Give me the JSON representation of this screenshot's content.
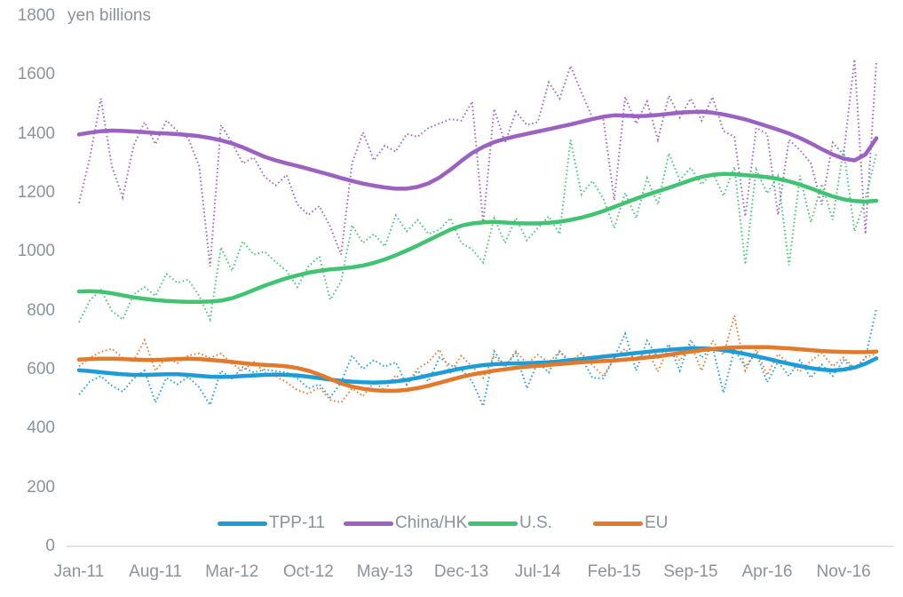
{
  "chart_data": {
    "type": "line",
    "unit_label": "yen billions",
    "y_axis": {
      "min": 0,
      "max": 1800,
      "step": 200,
      "tick_labels": [
        "0",
        "200",
        "400",
        "600",
        "800",
        "1000",
        "1200",
        "1400",
        "1600",
        "1800"
      ]
    },
    "x_axis": {
      "n_points": 74,
      "tick_indices": [
        0,
        7,
        14,
        21,
        28,
        35,
        42,
        49,
        56,
        63,
        70
      ],
      "tick_labels": [
        "Jan-11",
        "Aug-11",
        "Mar-12",
        "Oct-12",
        "May-13",
        "Dec-13",
        "Jul-14",
        "Feb-15",
        "Sep-15",
        "Apr-16",
        "Nov-16"
      ]
    },
    "grid": "off",
    "legend_position": "bottom",
    "line_styles": {
      "trend": "solid",
      "monthly": "dotted"
    },
    "series": [
      {
        "name": "TPP-11",
        "color": "#1d9cd8",
        "trend": [
          598,
          595,
          591,
          587,
          584,
          582,
          582,
          583,
          584,
          584,
          582,
          579,
          576,
          575,
          576,
          578,
          580,
          582,
          583,
          582,
          580,
          576,
          571,
          566,
          562,
          559,
          557,
          556,
          557,
          560,
          565,
          572,
          580,
          588,
          596,
          604,
          610,
          615,
          618,
          620,
          621,
          622,
          623,
          625,
          628,
          632,
          636,
          640,
          644,
          648,
          652,
          656,
          660,
          664,
          667,
          670,
          672,
          672,
          670,
          666,
          660,
          653,
          645,
          637,
          628,
          620,
          612,
          605,
          600,
          597,
          600,
          607,
          620,
          638
        ],
        "monthly": [
          515,
          560,
          578,
          545,
          525,
          570,
          597,
          488,
          572,
          550,
          575,
          540,
          480,
          596,
          570,
          608,
          590,
          600,
          595,
          590,
          570,
          536,
          550,
          505,
          557,
          647,
          602,
          632,
          610,
          625,
          548,
          596,
          560,
          641,
          615,
          600,
          560,
          476,
          662,
          610,
          656,
          536,
          626,
          590,
          662,
          620,
          641,
          572,
          570,
          640,
          722,
          596,
          698,
          640,
          686,
          596,
          701,
          640,
          677,
          521,
          668,
          610,
          656,
          557,
          626,
          578,
          632,
          572,
          617,
          578,
          632,
          600,
          640,
          807
        ]
      },
      {
        "name": "China/HK",
        "color": "#9b62c1",
        "trend": [
          1398,
          1404,
          1409,
          1411,
          1410,
          1408,
          1406,
          1403,
          1401,
          1399,
          1396,
          1392,
          1386,
          1378,
          1368,
          1354,
          1338,
          1322,
          1310,
          1300,
          1291,
          1281,
          1271,
          1261,
          1250,
          1240,
          1231,
          1224,
          1218,
          1214,
          1214,
          1220,
          1232,
          1252,
          1278,
          1308,
          1335,
          1356,
          1372,
          1383,
          1392,
          1400,
          1408,
          1416,
          1424,
          1432,
          1441,
          1450,
          1458,
          1463,
          1462,
          1460,
          1461,
          1464,
          1468,
          1472,
          1474,
          1475,
          1472,
          1466,
          1458,
          1449,
          1438,
          1426,
          1414,
          1401,
          1386,
          1368,
          1348,
          1330,
          1316,
          1310,
          1330,
          1385
        ],
        "monthly": [
          1165,
          1320,
          1520,
          1290,
          1185,
          1360,
          1440,
          1365,
          1445,
          1410,
          1385,
          1290,
          950,
          1430,
          1370,
          1300,
          1320,
          1255,
          1225,
          1260,
          1160,
          1125,
          1155,
          1085,
          990,
          1300,
          1405,
          1310,
          1360,
          1340,
          1400,
          1390,
          1420,
          1435,
          1450,
          1445,
          1510,
          1095,
          1485,
          1370,
          1475,
          1430,
          1440,
          1575,
          1520,
          1630,
          1540,
          1455,
          1450,
          1175,
          1525,
          1435,
          1510,
          1380,
          1530,
          1455,
          1520,
          1445,
          1525,
          1410,
          1390,
          1120,
          1420,
          1400,
          1125,
          1380,
          1345,
          1300,
          1160,
          1370,
          1330,
          1653,
          1060,
          1645
        ]
      },
      {
        "name": "U.S.",
        "color": "#41c373",
        "trend": [
          865,
          866,
          864,
          859,
          852,
          845,
          840,
          836,
          833,
          831,
          830,
          830,
          831,
          834,
          842,
          855,
          870,
          885,
          898,
          910,
          920,
          929,
          935,
          940,
          943,
          947,
          953,
          962,
          974,
          988,
          1004,
          1021,
          1039,
          1057,
          1075,
          1088,
          1096,
          1100,
          1101,
          1099,
          1097,
          1096,
          1096,
          1098,
          1102,
          1108,
          1116,
          1126,
          1138,
          1152,
          1166,
          1180,
          1193,
          1205,
          1217,
          1230,
          1243,
          1254,
          1261,
          1264,
          1263,
          1260,
          1257,
          1253,
          1247,
          1239,
          1228,
          1215,
          1201,
          1188,
          1178,
          1172,
          1170,
          1173
        ],
        "monthly": [
          760,
          835,
          870,
          800,
          770,
          855,
          880,
          850,
          925,
          895,
          905,
          850,
          770,
          1015,
          935,
          1035,
          990,
          1000,
          965,
          935,
          880,
          950,
          984,
          837,
          900,
          1090,
          1030,
          1060,
          1018,
          1123,
          1069,
          1108,
          1060,
          1075,
          1114,
          1030,
          1008,
          963,
          1114,
          1030,
          1114,
          1039,
          1080,
          1120,
          1060,
          1379,
          1195,
          1240,
          1180,
          1080,
          1200,
          1114,
          1250,
          1160,
          1334,
          1243,
          1285,
          1228,
          1270,
          1189,
          1288,
          957,
          1279,
          1198,
          1258,
          954,
          1258,
          1100,
          1230,
          1108,
          1349,
          1069,
          1180,
          1334
        ]
      },
      {
        "name": "EU",
        "color": "#e2792b",
        "trend": [
          634,
          636,
          637,
          637,
          636,
          634,
          633,
          633,
          634,
          636,
          637,
          636,
          633,
          630,
          626,
          622,
          618,
          616,
          614,
          611,
          605,
          596,
          583,
          568,
          553,
          542,
          535,
          530,
          528,
          528,
          531,
          537,
          545,
          555,
          565,
          575,
          583,
          590,
          596,
          601,
          606,
          610,
          613,
          616,
          619,
          622,
          625,
          627,
          629,
          631,
          634,
          637,
          641,
          645,
          650,
          656,
          661,
          666,
          670,
          673,
          675,
          676,
          676,
          676,
          674,
          672,
          669,
          666,
          663,
          661,
          660,
          659,
          659,
          661
        ],
        "monthly": [
          611,
          640,
          660,
          671,
          640,
          630,
          700,
          596,
          641,
          622,
          648,
          655,
          640,
          655,
          620,
          596,
          626,
          590,
          578,
          557,
          530,
          518,
          540,
          497,
          488,
          536,
          510,
          557,
          530,
          581,
          550,
          602,
          626,
          668,
          590,
          647,
          610,
          572,
          647,
          610,
          662,
          620,
          650,
          625,
          660,
          630,
          655,
          615,
          578,
          640,
          671,
          630,
          668,
          593,
          677,
          630,
          686,
          596,
          698,
          650,
          783,
          596,
          668,
          581,
          653,
          620,
          593,
          630,
          656,
          611,
          641,
          605,
          640,
          656
        ]
      }
    ]
  }
}
